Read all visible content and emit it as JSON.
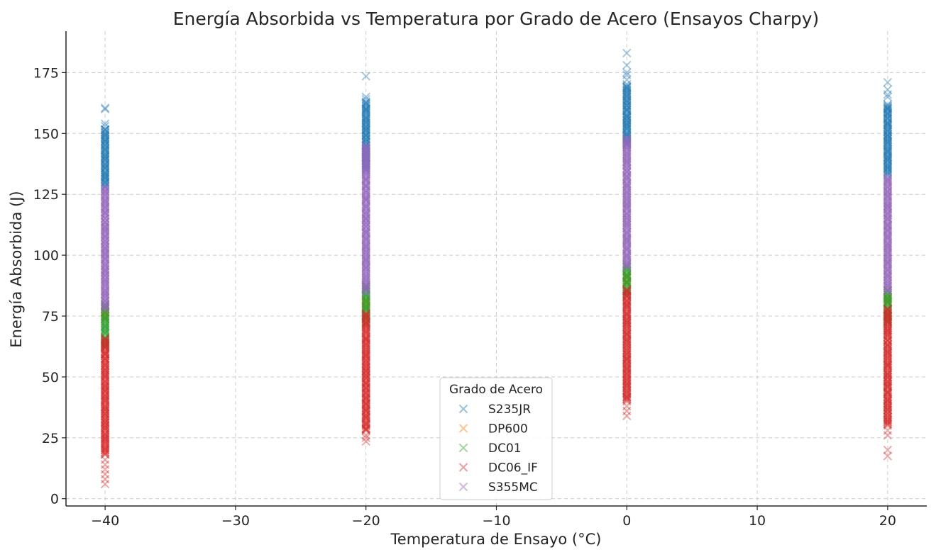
{
  "chart_data": {
    "type": "scatter",
    "title": "Energía Absorbida vs Temperatura por Grado de Acero (Ensayos Charpy)",
    "xlabel": "Temperatura de Ensayo (°C)",
    "ylabel": "Energía Absorbida (J)",
    "xlim": [
      -43,
      23
    ],
    "ylim": [
      -3,
      192
    ],
    "xticks": [
      -40,
      -30,
      -20,
      -10,
      0,
      10,
      20
    ],
    "xtick_labels": [
      "−40",
      "−30",
      "−20",
      "−10",
      "0",
      "10",
      "20"
    ],
    "yticks": [
      0,
      25,
      50,
      75,
      100,
      125,
      150,
      175
    ],
    "ytick_labels": [
      "0",
      "25",
      "50",
      "75",
      "100",
      "125",
      "150",
      "175"
    ],
    "grid": true,
    "marker": "x",
    "x_values": [
      -40,
      -20,
      0,
      20
    ],
    "legend": {
      "title": "Grado de Acero",
      "placement": "lower-center"
    },
    "series": [
      {
        "name": "S235JR",
        "color": "#1f77b4",
        "ranges": [
          {
            "x": -40,
            "core": [
              128,
              152
            ],
            "outliers": [
              160,
              160.5,
              153,
              154
            ]
          },
          {
            "x": -20,
            "core": [
              135,
              163
            ],
            "outliers": [
              173.5,
              165,
              164
            ]
          },
          {
            "x": 0,
            "core": [
              145,
              170
            ],
            "outliers": [
              183,
              178,
              175,
              174,
              172
            ]
          },
          {
            "x": 20,
            "core": [
              133,
              162
            ],
            "outliers": [
              171,
              168,
              166,
              165
            ]
          }
        ]
      },
      {
        "name": "DP600",
        "color": "#ff7f0e",
        "ranges": [
          {
            "x": -40,
            "core": [
              74,
              78
            ],
            "outliers": []
          },
          {
            "x": -20,
            "core": [
              78,
              82
            ],
            "outliers": []
          },
          {
            "x": 0,
            "core": [
              88,
              92
            ],
            "outliers": []
          },
          {
            "x": 20,
            "core": [
              80,
              83
            ],
            "outliers": []
          }
        ]
      },
      {
        "name": "DC01",
        "color": "#2ca02c",
        "ranges": [
          {
            "x": -40,
            "core": [
              62,
              80
            ],
            "outliers": []
          },
          {
            "x": -20,
            "core": [
              72,
              88
            ],
            "outliers": []
          },
          {
            "x": 0,
            "core": [
              84,
              96
            ],
            "outliers": []
          },
          {
            "x": 20,
            "core": [
              72,
              86
            ],
            "outliers": []
          }
        ]
      },
      {
        "name": "DC06_IF",
        "color": "#d62728",
        "ranges": [
          {
            "x": -40,
            "core": [
              18,
              66
            ],
            "outliers": [
              6,
              8,
              10,
              12,
              14,
              16
            ]
          },
          {
            "x": -20,
            "core": [
              28,
              76
            ],
            "outliers": [
              23.5,
              25,
              26,
              28
            ]
          },
          {
            "x": 0,
            "core": [
              40,
              86
            ],
            "outliers": [
              34,
              36,
              38
            ]
          },
          {
            "x": 20,
            "core": [
              30,
              78
            ],
            "outliers": [
              17.5,
              20,
              26,
              28
            ]
          }
        ]
      },
      {
        "name": "S355MC",
        "color": "#9467bd",
        "ranges": [
          {
            "x": -40,
            "core": [
              78,
              128
            ],
            "outliers": []
          },
          {
            "x": -20,
            "core": [
              85,
              145
            ],
            "outliers": []
          },
          {
            "x": 0,
            "core": [
              95,
              148
            ],
            "outliers": []
          },
          {
            "x": 20,
            "core": [
              85,
              132
            ],
            "outliers": []
          }
        ]
      }
    ]
  }
}
